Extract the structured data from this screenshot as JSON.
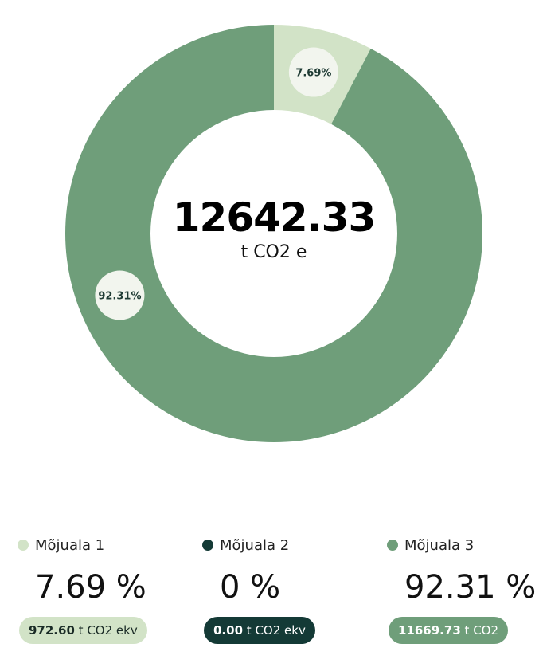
{
  "chart_data": {
    "type": "pie",
    "total": "12642.33",
    "total_unit": "t CO2 e",
    "slices": [
      {
        "name": "Mõjuala 1",
        "percent": 7.69,
        "label": "7.69%",
        "color": "#d2e3c7"
      },
      {
        "name": "Mõjuala 2",
        "percent": 0,
        "label": "",
        "color": "#143a36"
      },
      {
        "name": "Mõjuala 3",
        "percent": 92.31,
        "label": "92.31%",
        "color": "#6f9e7a"
      }
    ]
  },
  "legend": [
    {
      "name": "Mõjuala 1",
      "percent_text": "7.69 %",
      "amount": "972.60",
      "unit": "t CO2 ekv",
      "color": "#d2e3c7"
    },
    {
      "name": "Mõjuala 2",
      "percent_text": "0 %",
      "amount": "0.00",
      "unit": "t CO2 ekv",
      "color": "#143a36"
    },
    {
      "name": "Mõjuala 3",
      "percent_text": "92.31 %",
      "amount": "11669.73",
      "unit": "t CO2",
      "color": "#6f9e7a"
    }
  ]
}
